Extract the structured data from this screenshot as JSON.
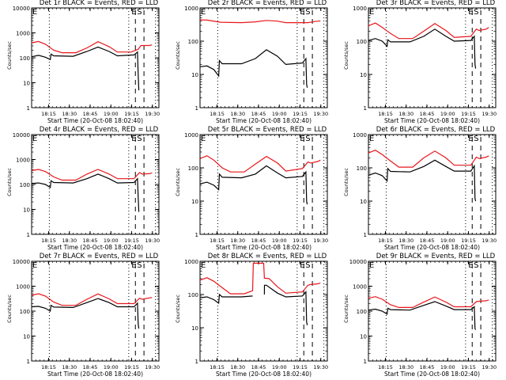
{
  "chart_data": {
    "type": "line",
    "layout": "3x3 grid of panels",
    "common": {
      "xlabel": "Start Time (20-Oct-08 18:02:40)",
      "ylabel": "Counts/sec",
      "x_ticks": [
        "18:15",
        "18:30",
        "18:45",
        "19:00",
        "19:15",
        "19:30"
      ],
      "x_range_minutes": [
        0,
        42
      ],
      "x_tick_minutes": [
        12.3,
        27.3,
        42.3,
        57.3,
        72.3,
        87.3
      ],
      "yscale": "log",
      "legend_note": "BLACK = Events, RED = LLD",
      "markers": {
        "dotted_lines_min": [
          12.8,
          70.2,
          89.5
        ],
        "dashed_lines_min": [
          75.0,
          81.2
        ],
        "annotations": [
          "E",
          "S"
        ]
      },
      "series_colors": {
        "events": "#000000",
        "lld": "#e8161b"
      }
    },
    "x_full_range_minutes": [
      0,
      92
    ],
    "panels": [
      {
        "title": "Det 1r BLACK = Events, RED = LLD",
        "ylim": [
          1,
          10000
        ],
        "yticks": [
          "1",
          "10",
          "100",
          "1000",
          "10000"
        ],
        "events": [
          [
            0,
            110
          ],
          [
            5,
            125
          ],
          [
            10,
            105
          ],
          [
            13.5,
            85
          ],
          [
            14,
            140
          ],
          [
            16,
            120
          ],
          [
            30,
            115
          ],
          [
            40,
            180
          ],
          [
            48,
            270
          ],
          [
            56,
            180
          ],
          [
            62,
            120
          ],
          [
            74,
            130
          ],
          [
            76.5,
            170
          ],
          [
            77,
            20
          ],
          [
            77.5,
            5
          ]
        ],
        "lld": [
          [
            0,
            400
          ],
          [
            5,
            450
          ],
          [
            10,
            350
          ],
          [
            16,
            200
          ],
          [
            22,
            160
          ],
          [
            32,
            160
          ],
          [
            40,
            250
          ],
          [
            48,
            440
          ],
          [
            56,
            280
          ],
          [
            62,
            170
          ],
          [
            72,
            170
          ],
          [
            77,
            220
          ],
          [
            79,
            310
          ],
          [
            85,
            310
          ],
          [
            87,
            330
          ]
        ],
        "labels": [
          "E",
          "S"
        ]
      },
      {
        "title": "Det 2r BLACK = Events, RED = LLD",
        "ylim": [
          1,
          1000
        ],
        "yticks": [
          "1",
          "10",
          "100",
          "1000"
        ],
        "events": [
          [
            0,
            17
          ],
          [
            5,
            18
          ],
          [
            10,
            14
          ],
          [
            13.5,
            9
          ],
          [
            14,
            26
          ],
          [
            16,
            21
          ],
          [
            30,
            21
          ],
          [
            40,
            30
          ],
          [
            48,
            55
          ],
          [
            56,
            35
          ],
          [
            62,
            20
          ],
          [
            74,
            22
          ],
          [
            76.5,
            30
          ],
          [
            77,
            5
          ],
          [
            77.5,
            4
          ]
        ],
        "lld": [
          [
            0,
            440
          ],
          [
            5,
            430
          ],
          [
            15,
            370
          ],
          [
            30,
            360
          ],
          [
            40,
            380
          ],
          [
            48,
            420
          ],
          [
            56,
            400
          ],
          [
            62,
            360
          ],
          [
            78,
            360
          ],
          [
            83,
            390
          ],
          [
            87,
            410
          ]
        ],
        "labels": [
          "E",
          "S"
        ]
      },
      {
        "title": "Det 3r BLACK = Events, RED = LLD",
        "ylim": [
          1,
          1000
        ],
        "yticks": [
          "1",
          "10",
          "100",
          "1000"
        ],
        "events": [
          [
            0,
            105
          ],
          [
            5,
            120
          ],
          [
            10,
            100
          ],
          [
            13.5,
            70
          ],
          [
            14,
            110
          ],
          [
            16,
            95
          ],
          [
            30,
            95
          ],
          [
            40,
            140
          ],
          [
            48,
            230
          ],
          [
            56,
            140
          ],
          [
            62,
            100
          ],
          [
            74,
            105
          ],
          [
            76.5,
            140
          ],
          [
            77,
            20
          ],
          [
            77.5,
            15
          ]
        ],
        "lld": [
          [
            0,
            290
          ],
          [
            5,
            350
          ],
          [
            10,
            260
          ],
          [
            16,
            170
          ],
          [
            22,
            120
          ],
          [
            32,
            120
          ],
          [
            40,
            200
          ],
          [
            48,
            340
          ],
          [
            56,
            210
          ],
          [
            62,
            130
          ],
          [
            74,
            140
          ],
          [
            78,
            230
          ],
          [
            80,
            210
          ],
          [
            85,
            230
          ],
          [
            87,
            260
          ]
        ],
        "labels": [
          "E",
          "S"
        ]
      },
      {
        "title": "Det 4r BLACK = Events, RED = LLD",
        "ylim": [
          1,
          10000
        ],
        "yticks": [
          "1",
          "10",
          "100",
          "1000",
          "10000"
        ],
        "events": [
          [
            0,
            110
          ],
          [
            5,
            115
          ],
          [
            10,
            100
          ],
          [
            13.5,
            75
          ],
          [
            14,
            140
          ],
          [
            16,
            120
          ],
          [
            30,
            115
          ],
          [
            40,
            170
          ],
          [
            48,
            260
          ],
          [
            56,
            170
          ],
          [
            62,
            115
          ],
          [
            74,
            120
          ],
          [
            76.5,
            170
          ],
          [
            77,
            30
          ],
          [
            77.5,
            8
          ]
        ],
        "lld": [
          [
            0,
            360
          ],
          [
            5,
            400
          ],
          [
            10,
            330
          ],
          [
            16,
            200
          ],
          [
            22,
            150
          ],
          [
            32,
            150
          ],
          [
            40,
            260
          ],
          [
            48,
            400
          ],
          [
            56,
            260
          ],
          [
            62,
            170
          ],
          [
            74,
            170
          ],
          [
            78,
            300
          ],
          [
            80,
            260
          ],
          [
            85,
            270
          ],
          [
            87,
            290
          ]
        ],
        "labels": [
          "E",
          "S"
        ]
      },
      {
        "title": "Det 5r BLACK = Events, RED = LLD",
        "ylim": [
          1,
          1000
        ],
        "yticks": [
          "1",
          "10",
          "100",
          "1000"
        ],
        "events": [
          [
            0,
            33
          ],
          [
            5,
            37
          ],
          [
            10,
            30
          ],
          [
            13.5,
            22
          ],
          [
            14,
            65
          ],
          [
            16,
            52
          ],
          [
            30,
            50
          ],
          [
            40,
            65
          ],
          [
            48,
            115
          ],
          [
            56,
            70
          ],
          [
            62,
            50
          ],
          [
            74,
            55
          ],
          [
            76.5,
            75
          ],
          [
            77,
            10
          ],
          [
            77.5,
            8
          ]
        ],
        "lld": [
          [
            0,
            190
          ],
          [
            5,
            230
          ],
          [
            10,
            170
          ],
          [
            16,
            100
          ],
          [
            22,
            75
          ],
          [
            32,
            75
          ],
          [
            40,
            130
          ],
          [
            48,
            220
          ],
          [
            56,
            140
          ],
          [
            62,
            80
          ],
          [
            74,
            95
          ],
          [
            78,
            150
          ],
          [
            80,
            140
          ],
          [
            85,
            155
          ],
          [
            87,
            170
          ]
        ],
        "labels": [
          "E",
          "S"
        ]
      },
      {
        "title": "Det 6r BLACK = Events, RED = LLD",
        "ylim": [
          1,
          1000
        ],
        "yticks": [
          "1",
          "10",
          "100",
          "1000"
        ],
        "events": [
          [
            0,
            60
          ],
          [
            5,
            70
          ],
          [
            10,
            58
          ],
          [
            13.5,
            40
          ],
          [
            14,
            95
          ],
          [
            16,
            78
          ],
          [
            30,
            75
          ],
          [
            40,
            110
          ],
          [
            48,
            170
          ],
          [
            56,
            110
          ],
          [
            62,
            80
          ],
          [
            74,
            80
          ],
          [
            76.5,
            115
          ],
          [
            77,
            12
          ],
          [
            77.5,
            10
          ]
        ],
        "lld": [
          [
            0,
            280
          ],
          [
            5,
            340
          ],
          [
            10,
            250
          ],
          [
            16,
            160
          ],
          [
            22,
            105
          ],
          [
            32,
            105
          ],
          [
            40,
            200
          ],
          [
            48,
            320
          ],
          [
            56,
            200
          ],
          [
            62,
            120
          ],
          [
            74,
            120
          ],
          [
            78,
            210
          ],
          [
            80,
            190
          ],
          [
            85,
            210
          ],
          [
            87,
            230
          ]
        ],
        "labels": [
          "E",
          "S"
        ]
      },
      {
        "title": "Det 7r BLACK = Events, RED = LLD",
        "ylim": [
          1,
          10000
        ],
        "yticks": [
          "1",
          "10",
          "100",
          "1000",
          "10000"
        ],
        "events": [
          [
            0,
            150
          ],
          [
            5,
            155
          ],
          [
            10,
            130
          ],
          [
            13.5,
            100
          ],
          [
            14,
            170
          ],
          [
            16,
            145
          ],
          [
            30,
            140
          ],
          [
            40,
            220
          ],
          [
            48,
            320
          ],
          [
            56,
            220
          ],
          [
            62,
            150
          ],
          [
            74,
            150
          ],
          [
            76.5,
            210
          ],
          [
            77,
            30
          ],
          [
            77.5,
            20
          ]
        ],
        "lld": [
          [
            0,
            430
          ],
          [
            5,
            500
          ],
          [
            10,
            400
          ],
          [
            16,
            230
          ],
          [
            22,
            170
          ],
          [
            32,
            170
          ],
          [
            40,
            300
          ],
          [
            48,
            490
          ],
          [
            56,
            310
          ],
          [
            62,
            200
          ],
          [
            74,
            200
          ],
          [
            78,
            330
          ],
          [
            80,
            300
          ],
          [
            85,
            340
          ],
          [
            87,
            350
          ]
        ],
        "labels": [
          "E",
          "S"
        ]
      },
      {
        "title": "Det 8r BLACK = Events, RED = LLD",
        "ylim": [
          1,
          1000
        ],
        "yticks": [
          "1",
          "10",
          "100",
          "1000"
        ],
        "events": [
          [
            0,
            80
          ],
          [
            5,
            85
          ],
          [
            10,
            70
          ],
          [
            13.5,
            55
          ],
          [
            14,
            100
          ],
          [
            16,
            85
          ],
          [
            30,
            85
          ],
          [
            38,
            90
          ],
          [
            38.5,
            null
          ],
          [
            46,
            null
          ],
          [
            46.5,
            100
          ],
          [
            46.6,
            190
          ],
          [
            48,
            190
          ],
          [
            56,
            110
          ],
          [
            62,
            85
          ],
          [
            74,
            90
          ],
          [
            76.5,
            120
          ],
          [
            77,
            15
          ],
          [
            77.5,
            12
          ]
        ],
        "lld": [
          [
            0,
            270
          ],
          [
            5,
            320
          ],
          [
            10,
            250
          ],
          [
            16,
            160
          ],
          [
            22,
            105
          ],
          [
            32,
            105
          ],
          [
            38,
            130
          ],
          [
            38.5,
            870
          ],
          [
            46,
            870
          ],
          [
            46.5,
            310
          ],
          [
            50,
            300
          ],
          [
            56,
            170
          ],
          [
            62,
            110
          ],
          [
            74,
            120
          ],
          [
            78,
            190
          ],
          [
            80,
            200
          ],
          [
            85,
            210
          ],
          [
            87,
            220
          ]
        ],
        "labels": [
          "E",
          "S"
        ]
      },
      {
        "title": "Det 9r BLACK = Events, RED = LLD",
        "ylim": [
          1,
          10000
        ],
        "yticks": [
          "1",
          "10",
          "100",
          "1000",
          "10000"
        ],
        "events": [
          [
            0,
            110
          ],
          [
            5,
            120
          ],
          [
            10,
            100
          ],
          [
            13.5,
            75
          ],
          [
            14,
            130
          ],
          [
            16,
            115
          ],
          [
            30,
            110
          ],
          [
            40,
            170
          ],
          [
            48,
            240
          ],
          [
            56,
            160
          ],
          [
            62,
            115
          ],
          [
            74,
            115
          ],
          [
            76.5,
            150
          ],
          [
            77,
            20
          ],
          [
            77.5,
            18
          ]
        ],
        "lld": [
          [
            0,
            330
          ],
          [
            5,
            380
          ],
          [
            10,
            300
          ],
          [
            16,
            180
          ],
          [
            22,
            140
          ],
          [
            32,
            140
          ],
          [
            40,
            230
          ],
          [
            48,
            370
          ],
          [
            56,
            230
          ],
          [
            62,
            150
          ],
          [
            74,
            150
          ],
          [
            78,
            240
          ],
          [
            80,
            250
          ],
          [
            85,
            260
          ],
          [
            87,
            280
          ]
        ],
        "labels": [
          "E",
          "S"
        ]
      }
    ]
  }
}
